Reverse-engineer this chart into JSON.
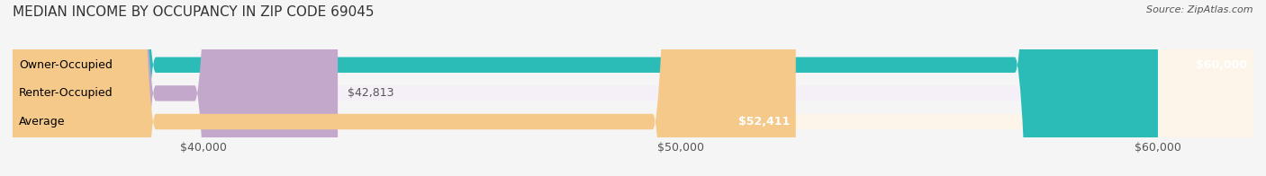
{
  "title": "MEDIAN INCOME BY OCCUPANCY IN ZIP CODE 69045",
  "source": "Source: ZipAtlas.com",
  "categories": [
    "Owner-Occupied",
    "Renter-Occupied",
    "Average"
  ],
  "values": [
    60000,
    42813,
    52411
  ],
  "labels": [
    "$60,000",
    "$42,813",
    "$52,411"
  ],
  "bar_colors": [
    "#2bbcb8",
    "#c4a8cc",
    "#f5c98a"
  ],
  "bar_bg_colors": [
    "#e8f8f8",
    "#f5f0f8",
    "#fdf5ea"
  ],
  "xmin": 36000,
  "xmax": 62000,
  "xticks": [
    40000,
    50000,
    60000
  ],
  "xticklabels": [
    "$40,000",
    "$50,000",
    "$60,000"
  ],
  "background_color": "#f5f5f5",
  "bar_bg_color": "#efefef",
  "title_fontsize": 11,
  "source_fontsize": 8,
  "tick_fontsize": 9,
  "label_fontsize": 9,
  "bar_label_fontsize": 9,
  "bar_height": 0.55
}
